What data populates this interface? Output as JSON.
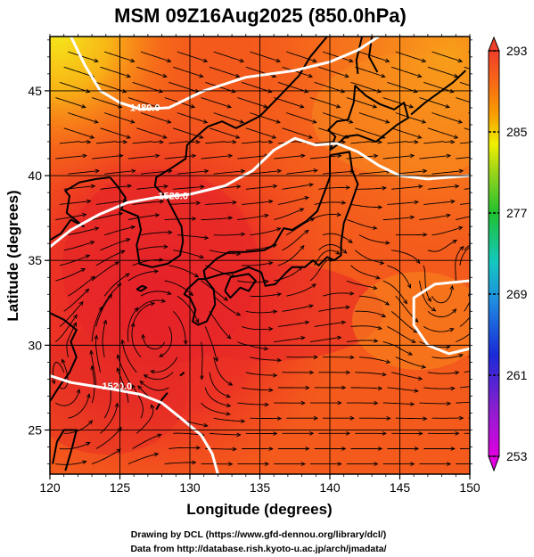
{
  "title": "MSM 09Z16Aug2025 (850.0hPa)",
  "map": {
    "xlabel": "Longitude (degrees)",
    "ylabel": "Latitude  (degrees)",
    "lon_range": [
      120,
      150
    ],
    "lat_range": [
      22.4,
      48.2
    ],
    "lon_ticks": [
      "120",
      "125",
      "130",
      "135",
      "140",
      "145",
      "150"
    ],
    "lat_ticks": [
      "25",
      "30",
      "35",
      "40",
      "45"
    ],
    "grid": true,
    "contours": [
      {
        "label": "1480.0",
        "lon": 126.8,
        "lat": 43.8
      },
      {
        "label": "1520.0",
        "lon": 128.8,
        "lat": 38.6
      },
      {
        "label": "1520.0",
        "lon": 124.8,
        "lat": 27.4
      }
    ]
  },
  "colorbar": {
    "ticks": [
      "293",
      "285",
      "277",
      "269",
      "261",
      "253"
    ],
    "range": [
      253,
      293
    ]
  },
  "credits": {
    "line1": "Drawing by DCL (https://www.gfd-dennou.org/library/dcl/)",
    "line2": "Data from http://database.rish.kyoto-u.ac.jp/arch/jmadata/"
  },
  "colors": {
    "warm": "#f2401e",
    "hot": "#e01e2a",
    "contour": "#ffffff",
    "coast": "#000000"
  }
}
